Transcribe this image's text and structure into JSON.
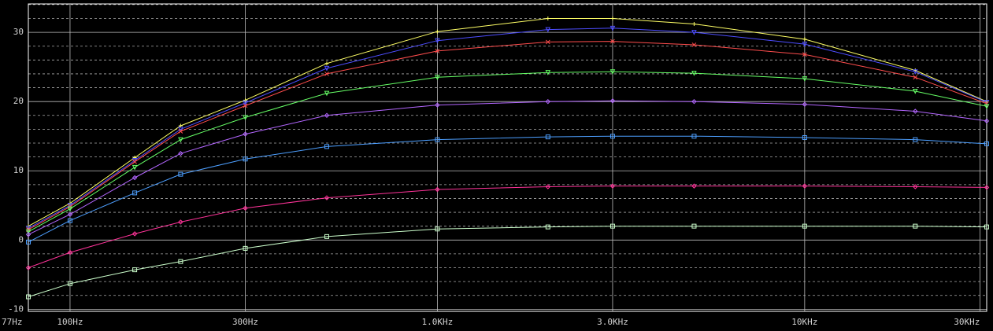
{
  "chart_data": {
    "type": "line",
    "log_x": true,
    "background": "#000000",
    "axis_color": "#ffffff",
    "grid": true,
    "xlim": [
      77,
      31300
    ],
    "ylim": [
      -10.3,
      34.1
    ],
    "xticks": [
      {
        "value": 77,
        "label": "77Hz"
      },
      {
        "value": 100,
        "label": "100Hz"
      },
      {
        "value": 300,
        "label": "300Hz"
      },
      {
        "value": 1000,
        "label": "1.0KHz"
      },
      {
        "value": 3000,
        "label": "3.0KHz"
      },
      {
        "value": 10000,
        "label": "10KHz"
      },
      {
        "value": 30000,
        "label": "30KHz"
      }
    ],
    "yticks": [
      -10,
      0,
      10,
      20,
      30
    ],
    "y_minor_ticks": [
      -8,
      -6,
      -4,
      -2,
      2,
      4,
      6,
      8,
      12,
      14,
      16,
      18,
      22,
      24,
      26,
      28,
      32,
      34
    ],
    "x": [
      77,
      100,
      150,
      200,
      300,
      500,
      1000,
      2000,
      3000,
      5000,
      10000,
      20000,
      31300
    ],
    "series": [
      {
        "color": "#ffff66",
        "marker": "plus",
        "values": [
          2.0,
          5.3,
          11.9,
          16.5,
          20.2,
          25.5,
          30.1,
          32.0,
          32.0,
          31.2,
          29.0,
          24.5,
          20.0
        ]
      },
      {
        "color": "#4d4dff",
        "marker": "down",
        "values": [
          1.7,
          5.0,
          11.5,
          16.0,
          19.8,
          24.8,
          28.8,
          30.4,
          30.6,
          30.0,
          28.3,
          24.3,
          19.9
        ]
      },
      {
        "color": "#ff4d4d",
        "marker": "cross",
        "values": [
          1.5,
          4.8,
          11.3,
          15.7,
          19.4,
          24.0,
          27.3,
          28.6,
          28.7,
          28.2,
          26.8,
          23.5,
          19.7
        ]
      },
      {
        "color": "#66ff66",
        "marker": "down",
        "values": [
          1.2,
          4.5,
          10.5,
          14.5,
          17.7,
          21.2,
          23.5,
          24.2,
          24.3,
          24.1,
          23.3,
          21.5,
          19.3
        ]
      },
      {
        "color": "#b366ff",
        "marker": "diamond",
        "values": [
          0.8,
          3.7,
          9.0,
          12.5,
          15.3,
          18.0,
          19.5,
          20.0,
          20.1,
          20.0,
          19.6,
          18.6,
          17.2
        ]
      },
      {
        "color": "#4d9fff",
        "marker": "square",
        "values": [
          -0.3,
          2.8,
          6.8,
          9.5,
          11.7,
          13.5,
          14.5,
          14.9,
          15.0,
          15.0,
          14.8,
          14.5,
          13.9
        ]
      },
      {
        "color": "#ff3399",
        "marker": "diamond",
        "values": [
          -4.0,
          -1.8,
          0.9,
          2.6,
          4.6,
          6.1,
          7.3,
          7.7,
          7.8,
          7.8,
          7.8,
          7.7,
          7.6
        ]
      },
      {
        "color": "#ccffcc",
        "marker": "square",
        "values": [
          -8.2,
          -6.3,
          -4.3,
          -3.1,
          -1.2,
          0.5,
          1.6,
          1.9,
          2.0,
          2.0,
          2.0,
          2.0,
          1.9
        ]
      }
    ]
  }
}
